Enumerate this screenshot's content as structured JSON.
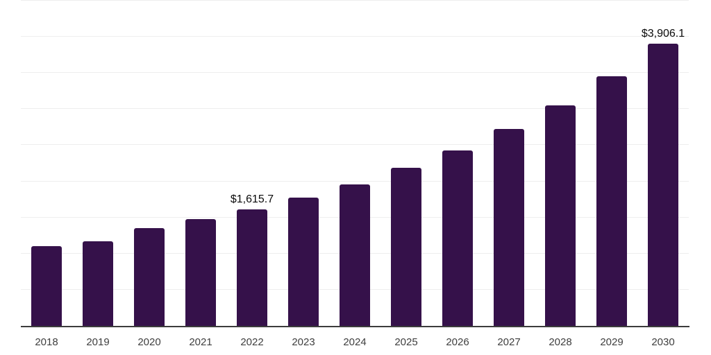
{
  "chart_data": {
    "type": "bar",
    "title": "",
    "xlabel": "",
    "ylabel": "",
    "categories": [
      "2018",
      "2019",
      "2020",
      "2021",
      "2022",
      "2023",
      "2024",
      "2025",
      "2026",
      "2027",
      "2028",
      "2029",
      "2030"
    ],
    "values": [
      1100,
      1173,
      1356,
      1481,
      1615.7,
      1779,
      1961,
      2183,
      2430,
      2721,
      3048,
      3452,
      3906.1
    ],
    "data_labels": [
      "",
      "",
      "",
      "",
      "$1,615.7",
      "",
      "",
      "",
      "",
      "",
      "",
      "",
      "$3,906.1"
    ],
    "ylim": [
      0,
      4500
    ],
    "gridline_step": 500,
    "grid": "horizontal",
    "legend_position": "none",
    "colors": {
      "bar": "#35114A",
      "gridline": "#EEEEEE",
      "axis_line": "#3C3C3C",
      "tick_label": "#3E3E3E",
      "data_label": "#0A0A0A",
      "background": "#FFFFFF"
    }
  }
}
